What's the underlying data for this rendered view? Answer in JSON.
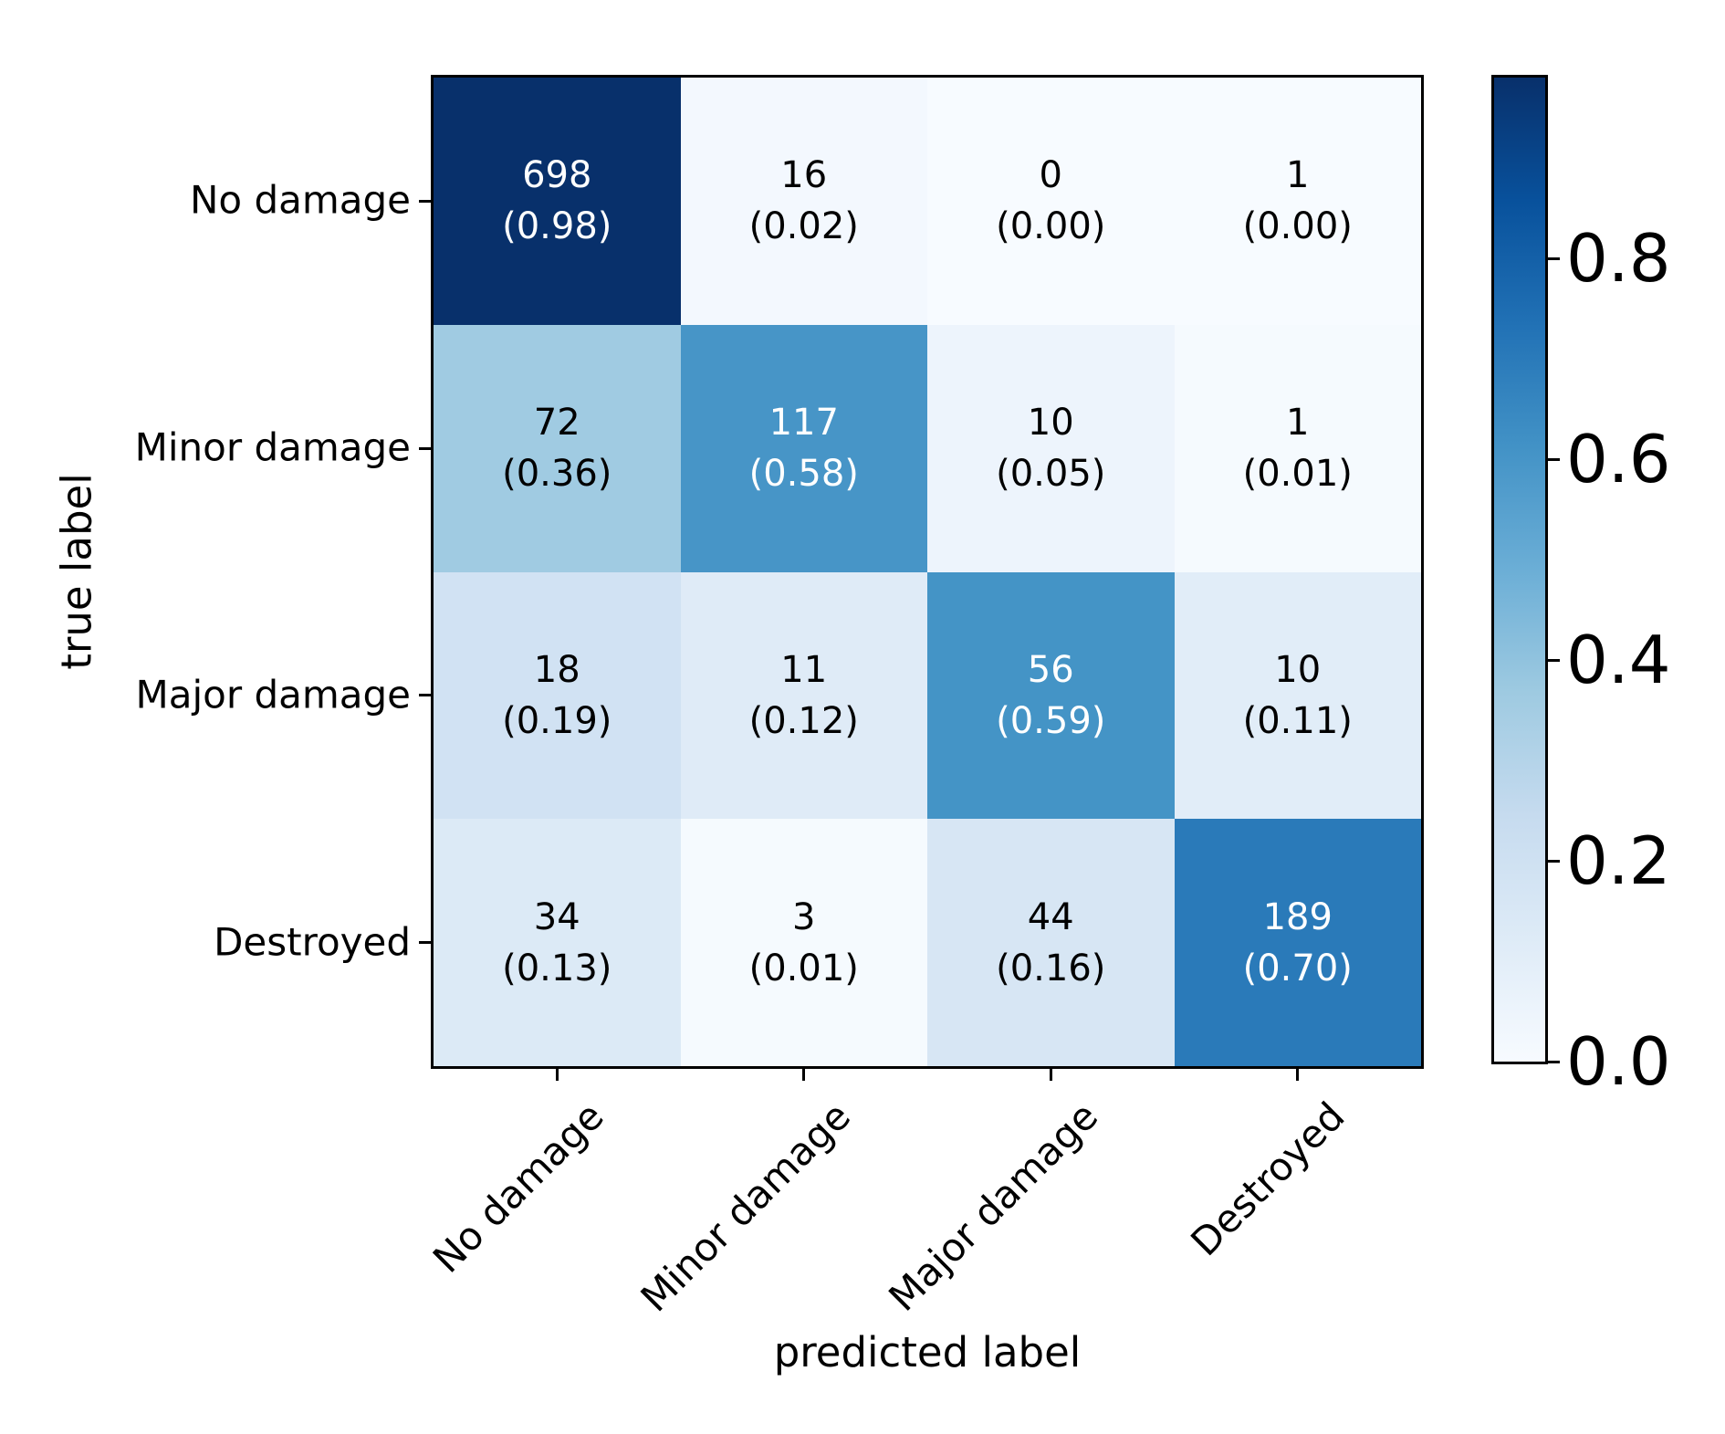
{
  "figure": {
    "background": "#ffffff"
  },
  "chart_data": {
    "type": "heatmap",
    "title": "",
    "xlabel": "predicted label",
    "ylabel": "true label",
    "x_tick_labels": [
      "No damage",
      "Minor damage",
      "Major damage",
      "Destroyed"
    ],
    "y_tick_labels": [
      "No damage",
      "Minor damage",
      "Major damage",
      "Destroyed"
    ],
    "grid": false,
    "legend_position": "colorbar-right",
    "matrix_counts": [
      [
        698,
        16,
        0,
        1
      ],
      [
        72,
        117,
        10,
        1
      ],
      [
        18,
        11,
        56,
        10
      ],
      [
        34,
        3,
        44,
        189
      ]
    ],
    "matrix_proportions": [
      [
        0.98,
        0.02,
        0.0,
        0.0
      ],
      [
        0.36,
        0.58,
        0.05,
        0.01
      ],
      [
        0.19,
        0.12,
        0.59,
        0.11
      ],
      [
        0.13,
        0.01,
        0.16,
        0.7
      ]
    ],
    "cells": [
      [
        {
          "count": "698",
          "prop": "(0.98)",
          "bg": "#08306b",
          "fg": "#ffffff"
        },
        {
          "count": "16",
          "prop": "(0.02)",
          "bg": "#f3f8fe",
          "fg": "#000000"
        },
        {
          "count": "0",
          "prop": "(0.00)",
          "bg": "#f7fbff",
          "fg": "#000000"
        },
        {
          "count": "1",
          "prop": "(0.00)",
          "bg": "#f7fbff",
          "fg": "#000000"
        }
      ],
      [
        {
          "count": "72",
          "prop": "(0.36)",
          "bg": "#a0cbe2",
          "fg": "#000000"
        },
        {
          "count": "117",
          "prop": "(0.58)",
          "bg": "#4795c7",
          "fg": "#ffffff"
        },
        {
          "count": "10",
          "prop": "(0.05)",
          "bg": "#edf4fc",
          "fg": "#000000"
        },
        {
          "count": "1",
          "prop": "(0.01)",
          "bg": "#f5fafe",
          "fg": "#000000"
        }
      ],
      [
        {
          "count": "18",
          "prop": "(0.19)",
          "bg": "#d1e2f3",
          "fg": "#000000"
        },
        {
          "count": "11",
          "prop": "(0.12)",
          "bg": "#dfebf7",
          "fg": "#000000"
        },
        {
          "count": "56",
          "prop": "(0.59)",
          "bg": "#4494c6",
          "fg": "#ffffff"
        },
        {
          "count": "10",
          "prop": "(0.11)",
          "bg": "#e1edf8",
          "fg": "#000000"
        }
      ],
      [
        {
          "count": "34",
          "prop": "(0.13)",
          "bg": "#dceaf6",
          "fg": "#000000"
        },
        {
          "count": "3",
          "prop": "(0.01)",
          "bg": "#f5fafe",
          "fg": "#000000"
        },
        {
          "count": "44",
          "prop": "(0.16)",
          "bg": "#d7e6f4",
          "fg": "#000000"
        },
        {
          "count": "189",
          "prop": "(0.70)",
          "bg": "#2a7ab9",
          "fg": "#ffffff"
        }
      ]
    ],
    "colorbar": {
      "colormap": "Blues",
      "vmin": 0.0,
      "vmax": 0.98,
      "tick_labels": [
        "0.8",
        "0.6",
        "0.4",
        "0.2",
        "0.0"
      ],
      "tick_values": [
        0.8,
        0.6,
        0.4,
        0.2,
        0.0
      ],
      "gradient_stops": [
        "#f7fbff",
        "#deebf7",
        "#c6dbef",
        "#9ecae1",
        "#6baed6",
        "#4292c6",
        "#2171b5",
        "#08519c",
        "#08306b"
      ]
    }
  }
}
